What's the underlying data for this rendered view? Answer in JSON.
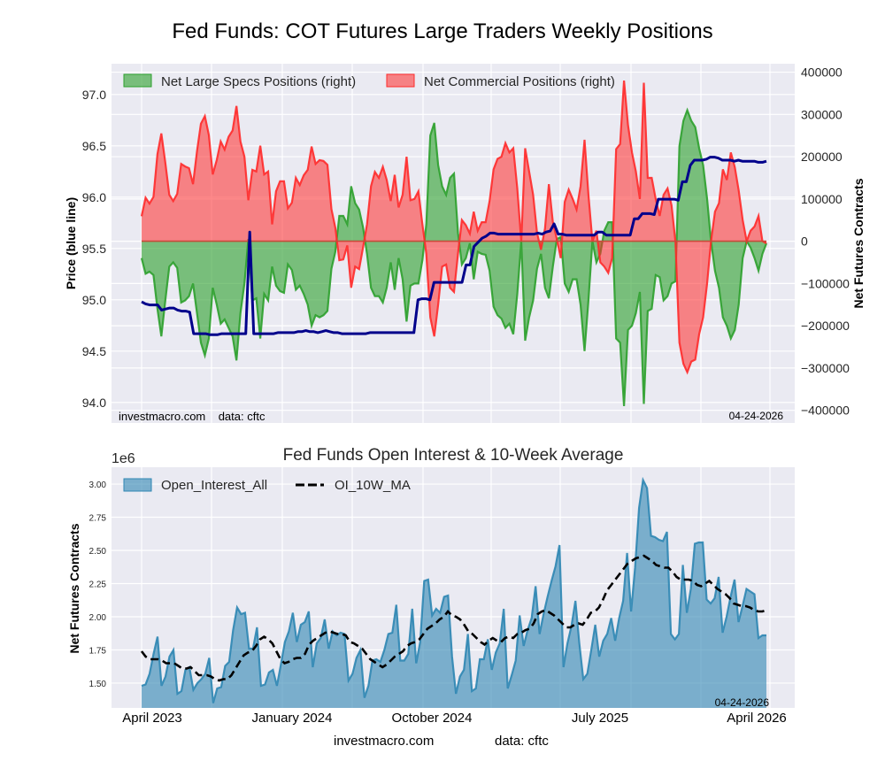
{
  "title": "Fed Funds: COT Futures Large Traders Weekly Positions",
  "colors": {
    "specs": "#2ca02c",
    "commercial": "#ff2a2a",
    "price": "#00008b",
    "open_interest": "#2e86b3",
    "moving_average": "#000000",
    "plot_background": "#eaeaf2"
  },
  "chart_data": [
    {
      "type": "area",
      "title": "Fed Funds: COT Futures Large Traders Weekly Positions",
      "x_unit": "week",
      "x_start": "April 2023",
      "x_end": "04-24-2026",
      "xlabel": "",
      "ylabel_left": "Price (blue line)",
      "ylabel_right": "Net Futures Contracts",
      "ylim_left": [
        93.8,
        97.3
      ],
      "ylim_right": [
        -430000,
        420000
      ],
      "yticks_left": [
        "94.0",
        "94.5",
        "95.0",
        "95.5",
        "96.0",
        "96.5",
        "97.0"
      ],
      "yticks_right": [
        "400000",
        "300000",
        "200000",
        "100000",
        "0",
        "−100000",
        "−200000",
        "−300000",
        "−400000"
      ],
      "grid": true,
      "legend_position": "top-left",
      "legend": [
        "Net Large Specs Positions (right)",
        "Net Commercial Positions (right)"
      ],
      "annotation_left": "investmacro.com    data: cftc",
      "annotation_right": "04-24-2026",
      "series": [
        {
          "name": "Net Commercial Positions (right)",
          "values": [
            59000,
            103000,
            89000,
            105000,
            206000,
            255000,
            186000,
            110000,
            95000,
            112000,
            183000,
            177000,
            173000,
            135000,
            213000,
            278000,
            296000,
            251000,
            158000,
            192000,
            236000,
            217000,
            247000,
            262000,
            320000,
            236000,
            200000,
            97000,
            169000,
            165000,
            226000,
            158000,
            165000,
            40000,
            118000,
            142000,
            142000,
            78000,
            91000,
            150000,
            133000,
            156000,
            169000,
            224000,
            183000,
            192000,
            190000,
            181000,
            76000,
            32000,
            -45000,
            -43000,
            -10000,
            -110000,
            -60000,
            -66000,
            -15000,
            40000,
            130000,
            164000,
            150000,
            176000,
            145000,
            95000,
            157000,
            80000,
            110000,
            200000,
            97000,
            100000,
            118000,
            40000,
            -30000,
            -180000,
            -225000,
            -150000,
            -60000,
            -55000,
            -110000,
            -120000,
            -30000,
            50000,
            38000,
            18000,
            70000,
            25000,
            45000,
            45000,
            95000,
            170000,
            195000,
            200000,
            232000,
            210000,
            220000,
            125000,
            0,
            220000,
            165000,
            110000,
            20000,
            -20000,
            30000,
            135000,
            45000,
            5000,
            -40000,
            93000,
            122000,
            100000,
            75000,
            130000,
            240000,
            110000,
            0,
            25000,
            -50000,
            -60000,
            -75000,
            -40000,
            218000,
            230000,
            380000,
            275000,
            210000,
            165000,
            100000,
            375000,
            150000,
            150000,
            100000,
            60000,
            110000,
            125000,
            85000,
            0,
            -240000,
            -290000,
            -310000,
            -285000,
            -280000,
            -220000,
            -180000,
            -100000,
            0,
            70000,
            90000,
            170000,
            145000,
            210000,
            175000,
            120000,
            50000,
            0,
            25000,
            35000,
            60000,
            0,
            -5000
          ],
          "color": "#ff2a2a"
        },
        {
          "name": "Net Large Specs Positions (right)",
          "values": [
            -40000,
            -77000,
            -72000,
            -80000,
            -160000,
            -225000,
            -140000,
            -60000,
            -50000,
            -63000,
            -145000,
            -140000,
            -130000,
            -100000,
            -170000,
            -240000,
            -270000,
            -230000,
            -110000,
            -150000,
            -195000,
            -185000,
            -205000,
            -225000,
            -282000,
            -170000,
            -100000,
            5000,
            -140000,
            -135000,
            -230000,
            -125000,
            -140000,
            -60000,
            -105000,
            -118000,
            -122000,
            -55000,
            -68000,
            -115000,
            -105000,
            -125000,
            -150000,
            -200000,
            -175000,
            -180000,
            -175000,
            -165000,
            -65000,
            -25000,
            60000,
            60000,
            40000,
            130000,
            90000,
            75000,
            33000,
            -30000,
            -110000,
            -130000,
            -130000,
            -145000,
            -110000,
            -50000,
            -115000,
            -40000,
            -90000,
            -190000,
            -105000,
            -100000,
            -100000,
            -45000,
            40000,
            250000,
            280000,
            180000,
            130000,
            110000,
            150000,
            160000,
            20000,
            -55000,
            -40000,
            -5000,
            -90000,
            -25000,
            -30000,
            -32000,
            -70000,
            -155000,
            -175000,
            -183000,
            -205000,
            -195000,
            -220000,
            -125000,
            0,
            -235000,
            -180000,
            -140000,
            -65000,
            -30000,
            -110000,
            -135000,
            -60000,
            5000,
            10000,
            -100000,
            -120000,
            -90000,
            -90000,
            -150000,
            -260000,
            -140000,
            0,
            -50000,
            -30000,
            25000,
            45000,
            45000,
            -230000,
            -240000,
            -390000,
            -210000,
            -200000,
            -170000,
            -120000,
            -385000,
            -165000,
            -160000,
            -80000,
            -85000,
            -140000,
            -130000,
            -100000,
            -95000,
            225000,
            285000,
            310000,
            285000,
            270000,
            220000,
            180000,
            100000,
            0,
            -70000,
            -110000,
            -180000,
            -200000,
            -230000,
            -210000,
            -150000,
            -40000,
            0,
            -15000,
            -40000,
            -70000,
            -30000,
            -5000
          ],
          "color": "#2ca02c"
        },
        {
          "name": "Price (blue line)",
          "axis": "left",
          "values": [
            94.98,
            94.96,
            94.95,
            94.95,
            94.95,
            94.9,
            94.91,
            94.92,
            94.92,
            94.9,
            94.89,
            94.89,
            94.88,
            94.67,
            94.67,
            94.67,
            94.67,
            94.66,
            94.66,
            94.66,
            94.67,
            94.67,
            94.67,
            94.67,
            94.67,
            94.67,
            94.67,
            95.66,
            94.67,
            94.67,
            94.67,
            94.67,
            94.67,
            94.67,
            94.68,
            94.68,
            94.68,
            94.68,
            94.68,
            94.69,
            94.69,
            94.7,
            94.69,
            94.69,
            94.68,
            94.69,
            94.7,
            94.69,
            94.68,
            94.68,
            94.67,
            94.67,
            94.67,
            94.67,
            94.67,
            94.67,
            94.67,
            94.68,
            94.68,
            94.68,
            94.68,
            94.68,
            94.68,
            94.68,
            94.68,
            94.68,
            94.68,
            94.68,
            94.68,
            95.0,
            95.01,
            95.01,
            95.0,
            95.17,
            95.17,
            95.17,
            95.17,
            95.17,
            95.17,
            95.17,
            95.17,
            95.34,
            95.34,
            95.52,
            95.56,
            95.6,
            95.62,
            95.65,
            95.65,
            95.64,
            95.64,
            95.64,
            95.64,
            95.64,
            95.64,
            95.64,
            95.64,
            95.64,
            95.64,
            95.65,
            95.64,
            95.66,
            95.67,
            95.74,
            95.64,
            95.64,
            95.63,
            95.63,
            95.63,
            95.63,
            95.63,
            95.63,
            95.63,
            95.63,
            95.66,
            95.66,
            95.63,
            95.63,
            95.63,
            95.63,
            95.63,
            95.63,
            95.63,
            95.79,
            95.79,
            95.84,
            95.84,
            95.84,
            95.83,
            95.98,
            95.98,
            95.98,
            95.98,
            95.98,
            95.97,
            96.15,
            96.15,
            96.31,
            96.36,
            96.36,
            96.36,
            96.37,
            96.39,
            96.39,
            96.38,
            96.36,
            96.36,
            96.36,
            96.35,
            96.36,
            96.35,
            96.35,
            96.35,
            96.35,
            96.34,
            96.34,
            96.35
          ],
          "color": "#00008b"
        }
      ]
    },
    {
      "type": "area",
      "title": "Fed Funds Open Interest & 10-Week Average",
      "scale_label": "1e6",
      "xlabel": "",
      "ylabel": "Net Futures Contracts",
      "ylim": [
        1.313,
        3.127
      ],
      "yticks": [
        "1.50",
        "1.75",
        "2.00",
        "2.25",
        "2.50",
        "2.75",
        "3.00"
      ],
      "xticks": [
        "April 2023",
        "January 2024",
        "October 2024",
        "July 2025",
        "April 2026"
      ],
      "grid": true,
      "legend_position": "top-left",
      "legend": [
        "Open_Interest_All",
        "OI_10W_MA"
      ],
      "annotation_right": "04-24-2026",
      "series": [
        {
          "name": "Open_Interest_All",
          "values": [
            1.48,
            1.49,
            1.57,
            1.72,
            1.85,
            1.48,
            1.55,
            1.7,
            1.75,
            1.42,
            1.44,
            1.6,
            1.62,
            1.45,
            1.5,
            1.53,
            1.57,
            1.69,
            1.35,
            1.46,
            1.47,
            1.63,
            1.66,
            1.9,
            2.07,
            2.02,
            2.03,
            1.76,
            1.76,
            1.92,
            1.48,
            1.49,
            1.58,
            1.6,
            1.48,
            1.64,
            1.81,
            1.89,
            2.03,
            1.81,
            1.94,
            1.96,
            2.04,
            1.62,
            1.8,
            1.84,
            1.98,
            1.76,
            1.89,
            1.86,
            1.88,
            1.87,
            1.52,
            1.57,
            1.69,
            1.75,
            1.39,
            1.48,
            1.67,
            1.68,
            1.66,
            1.75,
            1.87,
            1.88,
            2.09,
            1.67,
            1.67,
            1.72,
            2.06,
            1.65,
            1.81,
            2.27,
            2.28,
            2.01,
            2.06,
            2.03,
            2.15,
            2.16,
            1.7,
            1.42,
            1.55,
            1.6,
            1.87,
            1.44,
            1.46,
            1.68,
            1.68,
            1.83,
            1.6,
            1.73,
            1.8,
            2.06,
            1.46,
            1.56,
            1.67,
            2.01,
            1.78,
            1.9,
            1.99,
            2.23,
            1.87,
            2.02,
            2.15,
            2.27,
            2.38,
            2.54,
            1.62,
            1.8,
            1.93,
            2.12,
            1.8,
            1.53,
            1.57,
            1.75,
            1.94,
            1.7,
            1.82,
            1.87,
            1.99,
            1.82,
            1.99,
            2.12,
            2.48,
            2.04,
            2.37,
            2.82,
            3.03,
            2.97,
            2.61,
            2.6,
            2.58,
            2.57,
            2.64,
            1.87,
            1.83,
            1.87,
            2.39,
            2.03,
            2.21,
            2.55,
            2.56,
            2.56,
            2.13,
            2.1,
            2.14,
            2.3,
            1.88,
            2.0,
            2.15,
            2.28,
            1.96,
            2.08,
            2.21,
            2.19,
            2.17,
            1.84,
            1.86,
            1.86
          ],
          "color": "#2e86b3"
        },
        {
          "name": "OI_10W_MA",
          "values": [
            1.74,
            1.7,
            1.68,
            1.68,
            1.68,
            1.67,
            1.65,
            1.65,
            1.65,
            1.63,
            1.61,
            1.61,
            1.62,
            1.59,
            1.56,
            1.56,
            1.56,
            1.55,
            1.53,
            1.52,
            1.53,
            1.53,
            1.56,
            1.61,
            1.66,
            1.71,
            1.73,
            1.74,
            1.78,
            1.83,
            1.85,
            1.83,
            1.8,
            1.74,
            1.68,
            1.65,
            1.66,
            1.68,
            1.69,
            1.69,
            1.72,
            1.79,
            1.82,
            1.84,
            1.86,
            1.88,
            1.89,
            1.88,
            1.87,
            1.87,
            1.86,
            1.81,
            1.8,
            1.78,
            1.76,
            1.72,
            1.68,
            1.66,
            1.64,
            1.62,
            1.64,
            1.67,
            1.7,
            1.72,
            1.74,
            1.78,
            1.8,
            1.81,
            1.83,
            1.87,
            1.91,
            1.93,
            1.95,
            1.98,
            2.0,
            2.04,
            2.01,
            2.0,
            1.98,
            1.94,
            1.89,
            1.87,
            1.84,
            1.81,
            1.79,
            1.82,
            1.84,
            1.82,
            1.81,
            1.84,
            1.85,
            1.84,
            1.87,
            1.88,
            1.9,
            1.91,
            1.95,
            2.02,
            2.04,
            2.05,
            2.03,
            2.01,
            1.98,
            1.95,
            1.92,
            1.92,
            1.94,
            1.95,
            1.94,
            1.98,
            2.03,
            2.04,
            2.07,
            2.13,
            2.2,
            2.24,
            2.28,
            2.32,
            2.36,
            2.4,
            2.42,
            2.44,
            2.45,
            2.46,
            2.44,
            2.42,
            2.39,
            2.38,
            2.37,
            2.37,
            2.34,
            2.3,
            2.28,
            2.28,
            2.28,
            2.27,
            2.24,
            2.23,
            2.25,
            2.27,
            2.24,
            2.21,
            2.19,
            2.17,
            2.14,
            2.1,
            2.09,
            2.08,
            2.08,
            2.07,
            2.05,
            2.04,
            2.04,
            2.05
          ],
          "color": "#000000"
        }
      ]
    }
  ],
  "footer": {
    "source": "investmacro.com",
    "data": "data: cftc"
  }
}
